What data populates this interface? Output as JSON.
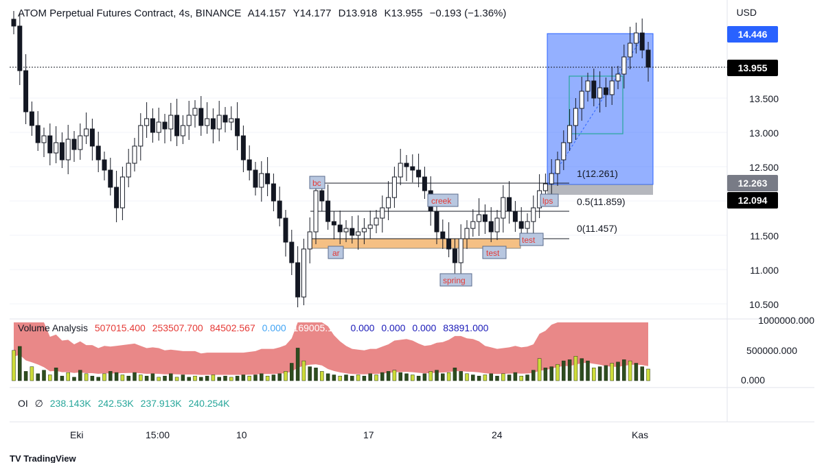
{
  "header": {
    "symbol_line": "ATOM Perpetual Futures Contract, 4s, BINANCE",
    "ohlc": [
      {
        "label": "A",
        "value": "14.157"
      },
      {
        "label": "Y",
        "value": "14.177"
      },
      {
        "label": "D",
        "value": "13.918"
      },
      {
        "label": "K",
        "value": "13.955"
      }
    ],
    "change": "−0.193 (−1.36%)"
  },
  "price_scale": {
    "currency": "USD",
    "ticks": [
      "13.500",
      "13.000",
      "12.500",
      "11.500",
      "11.000",
      "10.500"
    ],
    "tags": [
      {
        "text": "14.446",
        "bg": "#2962ff",
        "fg": "#ffffff"
      },
      {
        "text": "13.955",
        "bg": "#000000",
        "fg": "#ffffff"
      },
      {
        "text": "12.263",
        "bg": "#787b86",
        "fg": "#ffffff"
      },
      {
        "text": "12.094",
        "bg": "#000000",
        "fg": "#ffffff"
      }
    ]
  },
  "volume_scale": {
    "ticks": [
      "1000000.000",
      "500000.000",
      "0.000"
    ]
  },
  "time_axis": [
    "Eki",
    "15:00",
    "10",
    "17",
    "24",
    "Kas"
  ],
  "fib_labels": [
    "1(12.261)",
    "0.5(11.859)",
    "0(11.457)"
  ],
  "annotations": [
    "bc",
    "ar",
    "creek",
    "spring",
    "test",
    "test",
    "lps"
  ],
  "volume_legend": {
    "name": "Volume Analysis",
    "values": [
      {
        "text": "507015.400",
        "color": "#e53935"
      },
      {
        "text": "253507.700",
        "color": "#e53935"
      },
      {
        "text": "84502.567",
        "color": "#e53935"
      },
      {
        "text": "0.000",
        "color": "#42a5f5"
      },
      {
        "text": "169005.133",
        "color": "#ffffff"
      },
      {
        "text": "0.000",
        "color": "#1a1ab8"
      },
      {
        "text": "0.000",
        "color": "#1a1ab8"
      },
      {
        "text": "0.000",
        "color": "#1a1ab8"
      },
      {
        "text": "83891.000",
        "color": "#1a1ab8"
      }
    ]
  },
  "oi_legend": {
    "name": "OI",
    "symbol": "∅",
    "values": [
      "238.143K",
      "242.53K",
      "237.913K",
      "240.254K"
    ]
  },
  "footer": {
    "brand": "TradingView"
  },
  "colors": {
    "up": "#26a69a",
    "down": "#131722",
    "accent": "#2962ff",
    "oi_value": "#26a69a",
    "range_fill": "#f5c084",
    "volume_band": "#e57373"
  },
  "chart_data": {
    "type": "candlestick",
    "ylim": [
      10.4,
      14.6
    ],
    "close_series": [
      14.55,
      13.9,
      13.3,
      13.1,
      12.85,
      12.95,
      12.7,
      12.85,
      12.6,
      12.9,
      12.75,
      12.95,
      13.05,
      12.8,
      12.6,
      12.45,
      12.2,
      11.9,
      12.35,
      12.55,
      12.8,
      13.1,
      13.2,
      13.0,
      13.15,
      13.05,
      13.25,
      12.95,
      13.1,
      13.25,
      13.35,
      13.1,
      13.2,
      13.05,
      13.25,
      13.15,
      13.2,
      12.95,
      12.6,
      12.45,
      12.2,
      12.4,
      12.25,
      12.0,
      11.75,
      11.4,
      11.1,
      10.6,
      11.3,
      11.55,
      12.15,
      12.0,
      11.7,
      11.65,
      11.55,
      11.6,
      11.5,
      11.55,
      11.6,
      11.65,
      11.75,
      11.9,
      12.05,
      12.35,
      12.55,
      12.5,
      12.45,
      12.35,
      12.15,
      11.85,
      11.55,
      11.45,
      11.3,
      11.1,
      11.45,
      11.6,
      11.7,
      11.8,
      11.7,
      11.55,
      11.75,
      12.05,
      11.85,
      11.7,
      11.6,
      11.7,
      11.9,
      12.15,
      12.25,
      12.4,
      12.6,
      12.85,
      13.1,
      13.35,
      13.6,
      13.75,
      13.5,
      13.65,
      13.55,
      13.75,
      13.85,
      14.1,
      14.3,
      14.45,
      14.2,
      13.95
    ],
    "volume": [
      260,
      300,
      80,
      120,
      60,
      90,
      50,
      110,
      40,
      70,
      30,
      90,
      60,
      40,
      30,
      60,
      80,
      70,
      50,
      40,
      70,
      50,
      40,
      60,
      30,
      40,
      60,
      30,
      50,
      30,
      40,
      30,
      40,
      50,
      30,
      40,
      30,
      40,
      50,
      40,
      50,
      60,
      40,
      50,
      60,
      80,
      150,
      280,
      170,
      120,
      110,
      80,
      60,
      50,
      40,
      50,
      40,
      50,
      40,
      60,
      50,
      70,
      80,
      90,
      70,
      60,
      50,
      40,
      60,
      80,
      90,
      60,
      70,
      110,
      80,
      60,
      50,
      40,
      50,
      60,
      40,
      60,
      50,
      70,
      40,
      50,
      90,
      190,
      110,
      120,
      140,
      170,
      180,
      210,
      190,
      170,
      110,
      120,
      130,
      150,
      160,
      180,
      170,
      150,
      120,
      100
    ],
    "volume_unit": "thousand",
    "fib_levels": [
      12.261,
      11.859,
      11.457
    ],
    "accumulation_range": [
      11.3,
      11.457
    ],
    "price_lines": [
      14.446,
      13.955,
      12.263,
      12.094
    ]
  }
}
